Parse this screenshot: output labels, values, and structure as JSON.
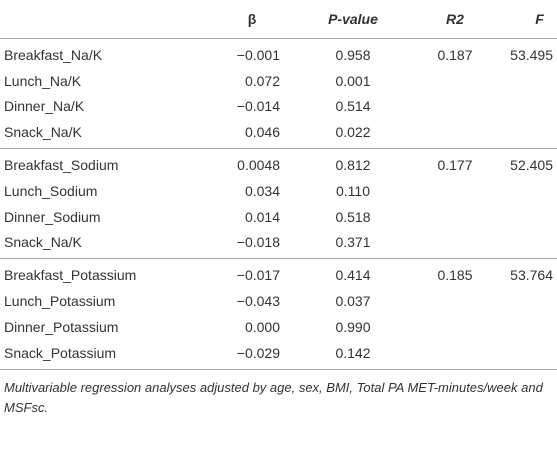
{
  "table": {
    "header": [
      "β",
      "P-value",
      "R2",
      "F"
    ],
    "groups": [
      {
        "rows": [
          [
            "Breakfast_Na/K",
            "−0.001",
            "0.958"
          ],
          [
            "Lunch_Na/K",
            "0.072",
            "0.001"
          ],
          [
            "Dinner_Na/K",
            "−0.014",
            "0.514"
          ],
          [
            "Snack_Na/K",
            "0.046",
            "0.022"
          ]
        ],
        "r2": "0.187",
        "f": "53.495"
      },
      {
        "rows": [
          [
            "Breakfast_Sodium",
            "0.0048",
            "0.812"
          ],
          [
            "Lunch_Sodium",
            "0.034",
            "0.110"
          ],
          [
            "Dinner_Sodium",
            "0.014",
            "0.518"
          ],
          [
            "Snack_Na/K",
            "−0.018",
            "0.371"
          ]
        ],
        "r2": "0.177",
        "f": "52.405"
      },
      {
        "rows": [
          [
            "Breakfast_Potassium",
            "−0.017",
            "0.414"
          ],
          [
            "Lunch_Potassium",
            "−0.043",
            "0.037"
          ],
          [
            "Dinner_Potassium",
            "0.000",
            "0.990"
          ],
          [
            "Snack_Potassium",
            "−0.029",
            "0.142"
          ]
        ],
        "r2": "0.185",
        "f": "53.764"
      }
    ],
    "footnote": "Multivariable regression analyses adjusted by age, sex, BMI, Total PA MET-minutes/week and MSFsc."
  }
}
